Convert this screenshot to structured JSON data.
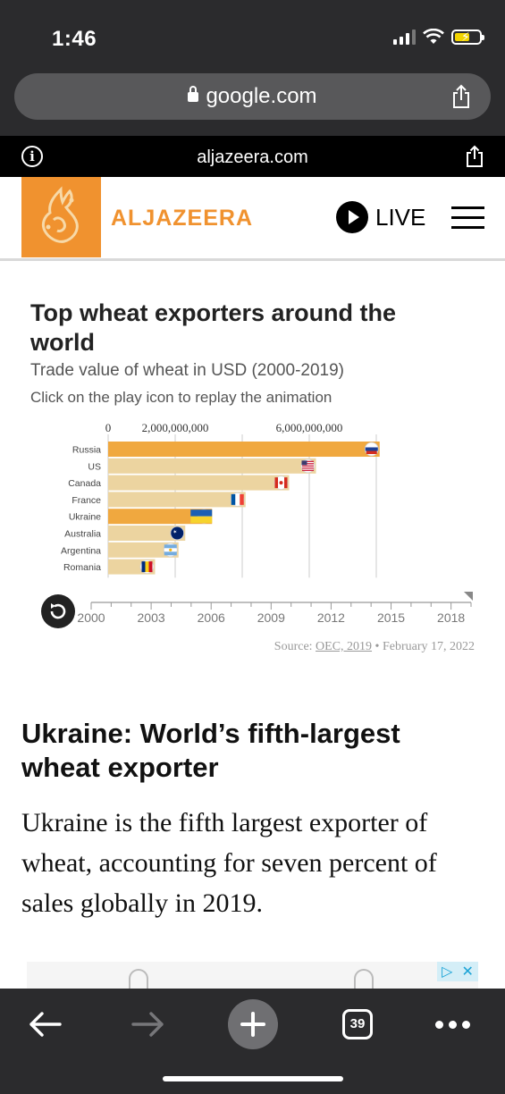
{
  "status_bar": {
    "time": "1:46"
  },
  "browser": {
    "url": "google.com"
  },
  "amp_bar": {
    "domain": "aljazeera.com"
  },
  "site": {
    "logo_text": "ALJAZEERA",
    "live_label": "LIVE"
  },
  "chart": {
    "title": "Top wheat exporters around the world",
    "subtitle": "Trade value of wheat in USD (2000-2019)",
    "note": "Click on the play icon to replay the animation",
    "source_prefix": "Source: ",
    "source_link": "OEC, 2019",
    "source_suffix": " • February 17, 2022"
  },
  "chart_data": {
    "type": "bar",
    "orientation": "horizontal",
    "title": "Top wheat exporters around the world",
    "subtitle": "Trade value of wheat in USD (2000-2019)",
    "value_axis_ticks": [
      0,
      2000000000,
      6000000000
    ],
    "value_axis_labels": [
      "0",
      "2,000,000,000",
      "6,000,000,000"
    ],
    "xlim": [
      0,
      8000000000
    ],
    "categories": [
      "Russia",
      "US",
      "Canada",
      "France",
      "Ukraine",
      "Australia",
      "Argentina",
      "Romania"
    ],
    "values": [
      8100000000,
      6200000000,
      5400000000,
      4100000000,
      3100000000,
      2300000000,
      2100000000,
      1400000000
    ],
    "highlighted": [
      "Russia",
      "Ukraine"
    ],
    "colors": {
      "default": "#ecd4a0",
      "highlight": "#f0a83f",
      "grid": "#cccccc"
    },
    "timeline": {
      "ticks": [
        "2000",
        "2003",
        "2006",
        "2009",
        "2012",
        "2015",
        "2018"
      ],
      "current_year": 2019,
      "start_year": 2000,
      "end_year": 2019
    }
  },
  "article": {
    "heading": "Ukraine: World’s fifth-largest wheat exporter",
    "body": "Ukraine is the fifth largest exporter of wheat, accounting for seven percent of sales globally in 2019."
  },
  "toolbar": {
    "tabs_count": "39"
  }
}
